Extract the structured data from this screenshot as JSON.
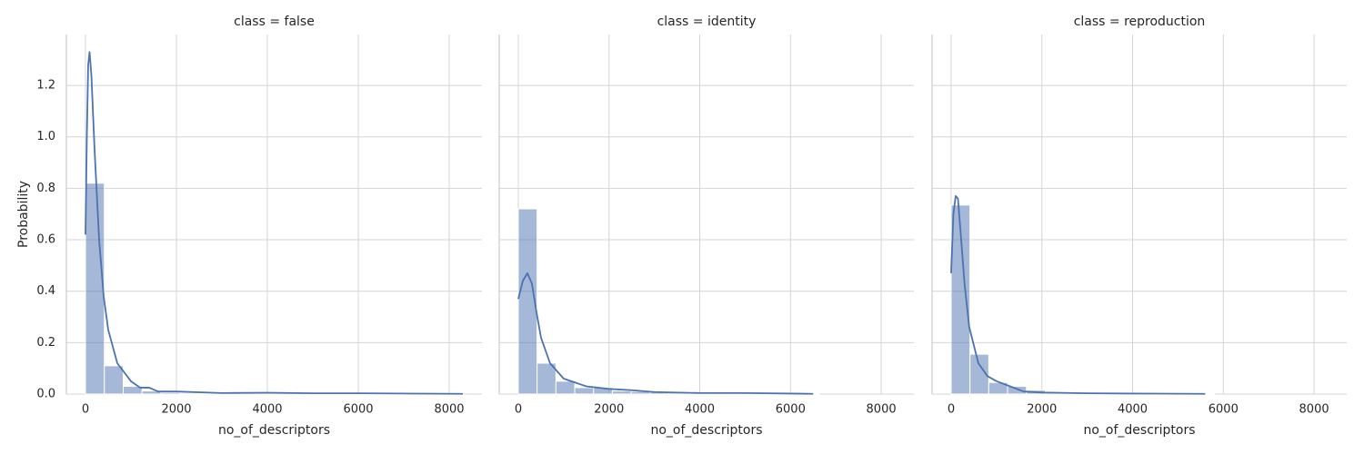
{
  "chart_data": [
    {
      "type": "histogram",
      "title": "class = false",
      "xlabel": "no_of_descriptors",
      "ylabel": "Probability",
      "bins": [
        0,
        415,
        830,
        1245,
        1660,
        2075,
        2490,
        2905,
        3320,
        3735,
        4150,
        4565,
        4980,
        5395,
        5810,
        6225,
        6640,
        7055,
        7470,
        7885,
        8300
      ],
      "values": [
        0.82,
        0.11,
        0.03,
        0.012,
        0.006,
        0.004,
        0.003,
        0.002,
        0.002,
        0.001,
        0.002,
        0.001,
        0.001,
        0.001,
        0.001,
        0.001,
        0.001,
        0,
        0,
        0.001
      ],
      "color": "#4c72b0",
      "line": {
        "x": [
          0,
          30,
          60,
          90,
          130,
          200,
          300,
          400,
          500,
          700,
          1000,
          1200,
          1400,
          1600,
          2000,
          3000,
          4000,
          5000,
          6000,
          8300
        ],
        "values": [
          0.62,
          1.0,
          1.28,
          1.33,
          1.24,
          0.95,
          0.6,
          0.38,
          0.25,
          0.12,
          0.05,
          0.025,
          0.025,
          0.01,
          0.01,
          0.004,
          0.005,
          0.003,
          0.003,
          0.001
        ]
      },
      "xlim": [
        -420,
        8720
      ],
      "xticks": [
        0,
        2000,
        4000,
        6000,
        8000
      ],
      "ylim": [
        0,
        1.398
      ],
      "yticks": [
        {
          "value": 0,
          "label": "0.0"
        },
        0.2,
        0.4,
        0.6,
        0.8,
        {
          "value": 1,
          "label": "1.0"
        },
        1.2
      ],
      "grid": true
    },
    {
      "type": "histogram",
      "title": "class = identity",
      "xlabel": "no_of_descriptors",
      "bins": [
        0,
        415,
        830,
        1245,
        1660,
        2075,
        2490,
        2905,
        3320,
        3735,
        4150,
        4565,
        4980,
        5395,
        5810,
        6225,
        6640,
        7055,
        7470,
        7885,
        8300
      ],
      "values": [
        0.72,
        0.12,
        0.05,
        0.025,
        0.025,
        0.012,
        0.01,
        0.008,
        0.005,
        0.004,
        0.004,
        0.003,
        0.003,
        0.002,
        0.002,
        0.002,
        0,
        0,
        0,
        0
      ],
      "color": "#4c72b0",
      "line": {
        "x": [
          0,
          100,
          200,
          300,
          400,
          500,
          700,
          1000,
          1500,
          2000,
          2500,
          3000,
          4000,
          5000,
          6000,
          6500
        ],
        "values": [
          0.37,
          0.44,
          0.47,
          0.43,
          0.32,
          0.22,
          0.12,
          0.06,
          0.03,
          0.02,
          0.015,
          0.008,
          0.004,
          0.004,
          0.002,
          0.001
        ]
      },
      "xlim": [
        -420,
        8720
      ],
      "xticks": [
        0,
        2000,
        4000,
        6000,
        8000
      ],
      "ylim": [
        0,
        1.398
      ],
      "yticks": [
        {
          "value": 0,
          "label": "0.0"
        },
        0.2,
        0.4,
        0.6,
        0.8,
        {
          "value": 1,
          "label": "1.0"
        },
        1.2
      ],
      "grid": true
    },
    {
      "type": "histogram",
      "title": "class = reproduction",
      "xlabel": "no_of_descriptors",
      "bins": [
        0,
        415,
        830,
        1245,
        1660,
        2075,
        2490,
        2905,
        3320,
        3735,
        4150,
        4565,
        4980,
        5395,
        5810,
        6225,
        6640,
        7055,
        7470,
        7885,
        8300
      ],
      "values": [
        0.735,
        0.155,
        0.045,
        0.03,
        0.015,
        0.006,
        0.004,
        0.003,
        0.002,
        0.002,
        0.002,
        0.001,
        0.001,
        0.001,
        0,
        0,
        0,
        0,
        0,
        0
      ],
      "color": "#4c72b0",
      "line": {
        "x": [
          0,
          50,
          100,
          150,
          200,
          300,
          400,
          600,
          800,
          1000,
          1300,
          1600,
          2000,
          3000,
          4000,
          5600
        ],
        "values": [
          0.47,
          0.7,
          0.77,
          0.76,
          0.65,
          0.42,
          0.26,
          0.12,
          0.07,
          0.05,
          0.03,
          0.01,
          0.006,
          0.003,
          0.002,
          0.001
        ]
      },
      "xlim": [
        -420,
        8720
      ],
      "xticks": [
        0,
        2000,
        4000,
        6000,
        8000
      ],
      "ylim": [
        0,
        1.398
      ],
      "yticks": [
        {
          "value": 0,
          "label": "0.0"
        },
        0.2,
        0.4,
        0.6,
        0.8,
        {
          "value": 1,
          "label": "1.0"
        },
        1.2
      ],
      "grid": true
    }
  ]
}
